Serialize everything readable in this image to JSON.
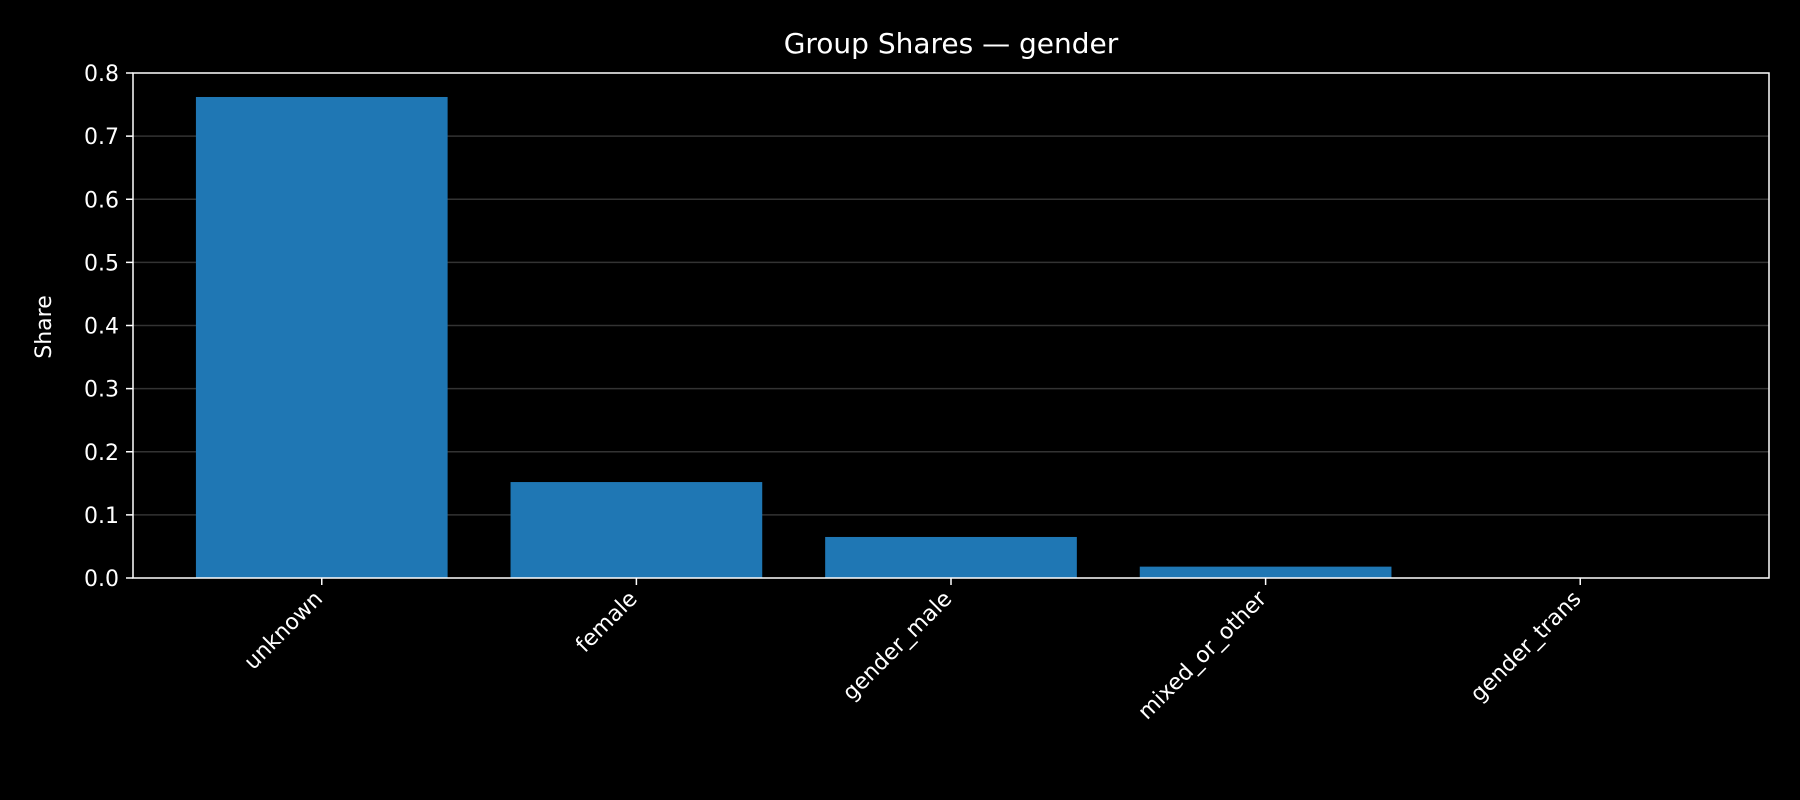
{
  "chart_data": {
    "type": "bar",
    "title": "Group Shares — gender",
    "xlabel": "",
    "ylabel": "Share",
    "categories": [
      "unknown",
      "female",
      "gender_male",
      "mixed_or_other",
      "gender_trans"
    ],
    "values": [
      0.762,
      0.152,
      0.065,
      0.018,
      0.0005
    ],
    "ylim": [
      0,
      0.8
    ],
    "yticks": [
      "0.0",
      "0.1",
      "0.2",
      "0.3",
      "0.4",
      "0.5",
      "0.6",
      "0.7",
      "0.8"
    ],
    "grid": "horizontal",
    "legend": "none",
    "colors": {
      "bar": "#1f77b4",
      "background": "#000000",
      "text": "#ffffff",
      "axis": "#ffffff",
      "grid": "#333333"
    }
  }
}
